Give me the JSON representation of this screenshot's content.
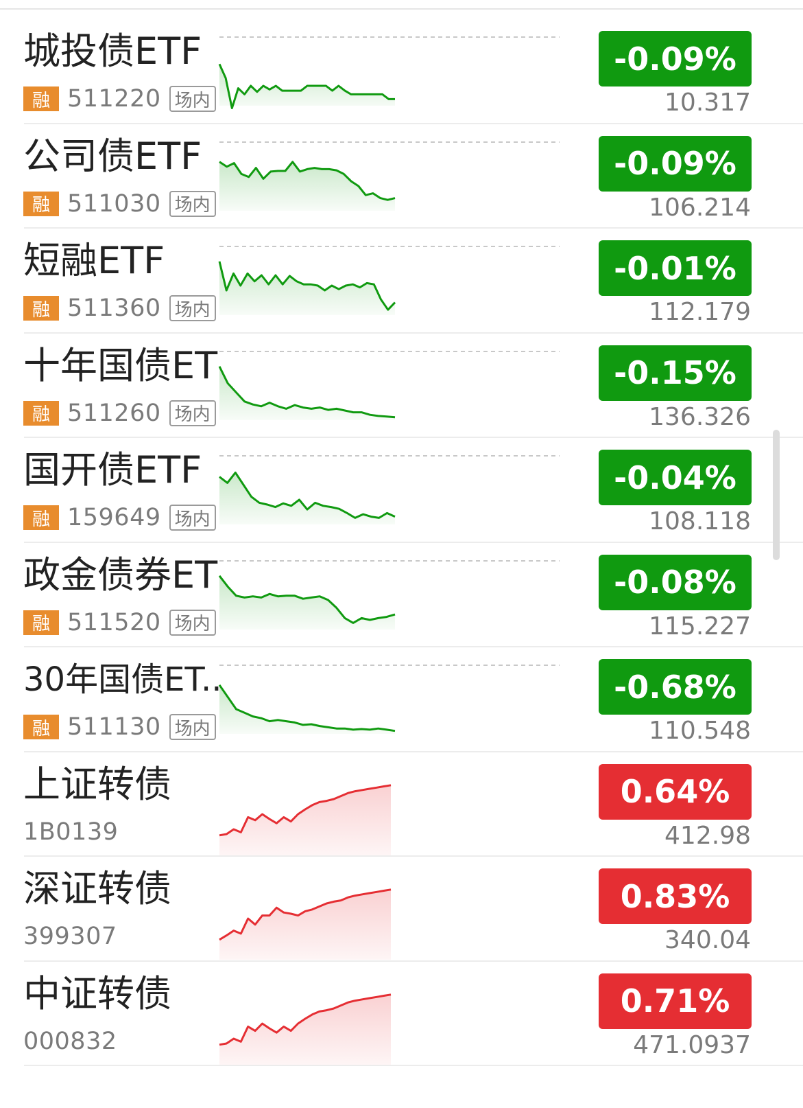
{
  "colors": {
    "down": "#109a10",
    "up": "#e52e33",
    "tag": "#e88c2d"
  },
  "rows": [
    {
      "name": "城投债ETF",
      "tag": "融",
      "code": "511220",
      "market": "场内",
      "change": "-0.09%",
      "price": "10.317",
      "trend": "down",
      "spark": [
        0.22,
        0.45,
        0.95,
        0.62,
        0.72,
        0.58,
        0.68,
        0.58,
        0.64,
        0.58,
        0.66,
        0.66,
        0.66,
        0.66,
        0.58,
        0.58,
        0.58,
        0.58,
        0.66,
        0.58,
        0.66,
        0.72,
        0.72,
        0.72,
        0.72,
        0.72,
        0.72,
        0.8,
        0.8
      ]
    },
    {
      "name": "公司债ETF",
      "tag": "融",
      "code": "511030",
      "market": "场内",
      "change": "-0.09%",
      "price": "106.214",
      "trend": "down",
      "spark": [
        0.1,
        0.18,
        0.12,
        0.3,
        0.35,
        0.2,
        0.38,
        0.26,
        0.25,
        0.25,
        0.1,
        0.26,
        0.22,
        0.2,
        0.22,
        0.22,
        0.24,
        0.3,
        0.42,
        0.5,
        0.65,
        0.62,
        0.7,
        0.73,
        0.7
      ]
    },
    {
      "name": "短融ETF",
      "tag": "融",
      "code": "511360",
      "market": "场内",
      "change": "-0.01%",
      "price": "112.179",
      "trend": "down",
      "spark": [
        0.02,
        0.5,
        0.22,
        0.42,
        0.22,
        0.35,
        0.25,
        0.4,
        0.25,
        0.4,
        0.26,
        0.35,
        0.4,
        0.4,
        0.42,
        0.5,
        0.42,
        0.48,
        0.42,
        0.4,
        0.45,
        0.38,
        0.4,
        0.65,
        0.82,
        0.7
      ]
    },
    {
      "name": "十年国债ETF",
      "tag": "融",
      "code": "511260",
      "market": "场内",
      "change": "-0.15%",
      "price": "136.326",
      "trend": "down",
      "spark": [
        0.02,
        0.3,
        0.45,
        0.6,
        0.65,
        0.68,
        0.62,
        0.68,
        0.72,
        0.66,
        0.7,
        0.72,
        0.7,
        0.74,
        0.72,
        0.75,
        0.78,
        0.78,
        0.82,
        0.84,
        0.85,
        0.86
      ]
    },
    {
      "name": "国开债ETF",
      "tag": "融",
      "code": "159649",
      "market": "场内",
      "change": "-0.04%",
      "price": "108.118",
      "trend": "down",
      "spark": [
        0.12,
        0.22,
        0.05,
        0.25,
        0.45,
        0.55,
        0.58,
        0.62,
        0.56,
        0.6,
        0.5,
        0.66,
        0.55,
        0.6,
        0.62,
        0.65,
        0.72,
        0.8,
        0.74,
        0.78,
        0.8,
        0.72,
        0.78
      ]
    },
    {
      "name": "政金债券ETF",
      "tag": "融",
      "code": "511520",
      "market": "场内",
      "change": "-0.08%",
      "price": "115.227",
      "trend": "down",
      "spark": [
        0.02,
        0.2,
        0.35,
        0.38,
        0.36,
        0.38,
        0.32,
        0.36,
        0.35,
        0.35,
        0.4,
        0.38,
        0.36,
        0.42,
        0.55,
        0.72,
        0.8,
        0.72,
        0.75,
        0.72,
        0.7,
        0.66
      ]
    },
    {
      "name": "30年国债ET...",
      "tag": "融",
      "code": "511130",
      "market": "场内",
      "change": "-0.68%",
      "price": "110.548",
      "trend": "down",
      "spark": [
        0.1,
        0.3,
        0.5,
        0.56,
        0.62,
        0.65,
        0.7,
        0.68,
        0.7,
        0.72,
        0.76,
        0.75,
        0.78,
        0.8,
        0.82,
        0.82,
        0.84,
        0.83,
        0.84,
        0.82,
        0.84,
        0.86
      ]
    },
    {
      "name": "上证转债",
      "tag": "",
      "code": "1B0139",
      "market": "",
      "change": "0.64%",
      "price": "412.98",
      "trend": "up",
      "spark": [
        0.85,
        0.83,
        0.75,
        0.8,
        0.55,
        0.6,
        0.5,
        0.58,
        0.65,
        0.55,
        0.62,
        0.5,
        0.42,
        0.35,
        0.3,
        0.28,
        0.25,
        0.2,
        0.15,
        0.12,
        0.1,
        0.08,
        0.06,
        0.04,
        0.02
      ]
    },
    {
      "name": "深证转债",
      "tag": "",
      "code": "399307",
      "market": "",
      "change": "0.83%",
      "price": "340.04",
      "trend": "up",
      "spark": [
        0.85,
        0.78,
        0.7,
        0.75,
        0.5,
        0.6,
        0.45,
        0.45,
        0.32,
        0.4,
        0.42,
        0.45,
        0.38,
        0.35,
        0.3,
        0.25,
        0.22,
        0.2,
        0.15,
        0.12,
        0.1,
        0.08,
        0.06,
        0.04,
        0.02
      ]
    },
    {
      "name": "中证转债",
      "tag": "",
      "code": "000832",
      "market": "",
      "change": "0.71%",
      "price": "471.0937",
      "trend": "up",
      "spark": [
        0.85,
        0.83,
        0.75,
        0.8,
        0.55,
        0.62,
        0.5,
        0.58,
        0.65,
        0.55,
        0.62,
        0.5,
        0.42,
        0.35,
        0.3,
        0.28,
        0.25,
        0.2,
        0.15,
        0.12,
        0.1,
        0.08,
        0.06,
        0.04,
        0.02
      ]
    }
  ]
}
